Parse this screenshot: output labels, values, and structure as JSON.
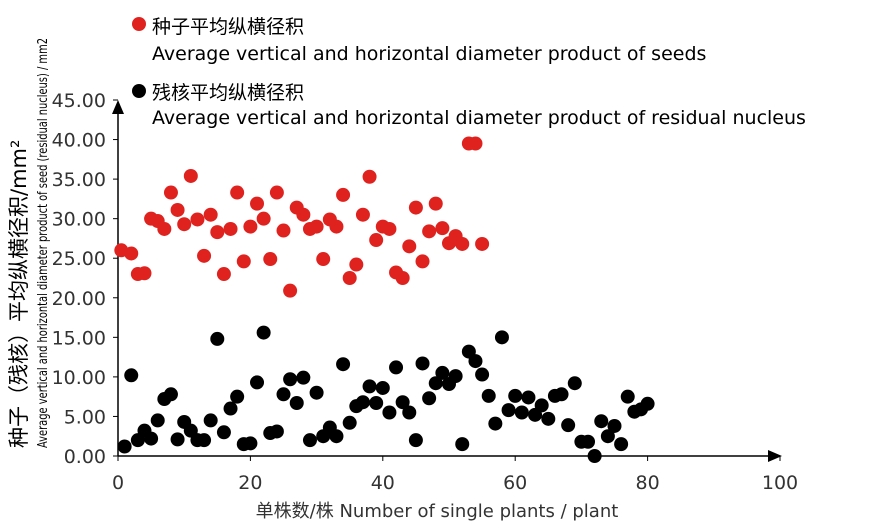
{
  "chart_data": {
    "type": "scatter",
    "title": "",
    "xlabel": "单株数/株 Number of single plants / plant",
    "ylabel_cn": "种子（残核）平均纵横径积/mm²",
    "ylabel_en": "Average vertical and horizontal diameter product of seed (residual nucleus) / mm2",
    "xlim": [
      0,
      100
    ],
    "ylim": [
      0,
      45
    ],
    "xticks": [
      "0",
      "20",
      "40",
      "60",
      "80",
      "100"
    ],
    "yticks": [
      "0.00",
      "5.00",
      "10.00",
      "15.00",
      "20.00",
      "25.00",
      "30.00",
      "35.00",
      "40.00",
      "45.00"
    ],
    "grid": false,
    "legend_position": "top-left",
    "series": [
      {
        "name": "种子平均纵横径积",
        "name_en": "Average vertical and horizontal diameter product of seeds",
        "color": "#e0221f",
        "points": [
          [
            0.5,
            26.0
          ],
          [
            2,
            25.6
          ],
          [
            3,
            23.0
          ],
          [
            4,
            23.1
          ],
          [
            5,
            30.0
          ],
          [
            6,
            29.7
          ],
          [
            7,
            28.7
          ],
          [
            8,
            33.3
          ],
          [
            9,
            31.1
          ],
          [
            10,
            29.3
          ],
          [
            11,
            35.4
          ],
          [
            12,
            29.9
          ],
          [
            13,
            25.3
          ],
          [
            14,
            30.5
          ],
          [
            15,
            28.3
          ],
          [
            16,
            23.0
          ],
          [
            17,
            28.7
          ],
          [
            18,
            33.3
          ],
          [
            19,
            24.6
          ],
          [
            20,
            29.0
          ],
          [
            21,
            31.9
          ],
          [
            22,
            30.0
          ],
          [
            23,
            24.9
          ],
          [
            24,
            33.3
          ],
          [
            25,
            28.5
          ],
          [
            26,
            20.9
          ],
          [
            27,
            31.4
          ],
          [
            28,
            30.5
          ],
          [
            29,
            28.7
          ],
          [
            30,
            29.0
          ],
          [
            31,
            24.9
          ],
          [
            32,
            29.9
          ],
          [
            33,
            29.0
          ],
          [
            34,
            33.0
          ],
          [
            35,
            22.5
          ],
          [
            36,
            24.2
          ],
          [
            37,
            30.5
          ],
          [
            38,
            35.3
          ],
          [
            39,
            27.3
          ],
          [
            40,
            29.0
          ],
          [
            41,
            28.7
          ],
          [
            42,
            23.2
          ],
          [
            43,
            22.5
          ],
          [
            44,
            26.5
          ],
          [
            45,
            31.4
          ],
          [
            46,
            24.6
          ],
          [
            47,
            28.4
          ],
          [
            48,
            31.9
          ],
          [
            49,
            28.8
          ],
          [
            50,
            26.9
          ],
          [
            51,
            27.8
          ],
          [
            52,
            26.8
          ],
          [
            53,
            39.5
          ],
          [
            54,
            39.5
          ],
          [
            55,
            26.8
          ]
        ]
      },
      {
        "name": "残核平均纵横径积",
        "name_en": "Average vertical and horizontal diameter product of residual nucleus",
        "color": "#000000",
        "points": [
          [
            1,
            1.2
          ],
          [
            2,
            10.2
          ],
          [
            3,
            2.0
          ],
          [
            4,
            3.2
          ],
          [
            5,
            2.2
          ],
          [
            6,
            4.5
          ],
          [
            7,
            7.2
          ],
          [
            8,
            7.8
          ],
          [
            9,
            2.1
          ],
          [
            10,
            4.3
          ],
          [
            11,
            3.2
          ],
          [
            12,
            2.0
          ],
          [
            13,
            2.0
          ],
          [
            14,
            4.5
          ],
          [
            15,
            14.8
          ],
          [
            16,
            3.0
          ],
          [
            17,
            6.0
          ],
          [
            18,
            7.5
          ],
          [
            19,
            1.5
          ],
          [
            20,
            1.6
          ],
          [
            21,
            9.3
          ],
          [
            22,
            15.6
          ],
          [
            23,
            2.9
          ],
          [
            24,
            3.1
          ],
          [
            25,
            7.8
          ],
          [
            26,
            9.7
          ],
          [
            27,
            6.7
          ],
          [
            28,
            9.9
          ],
          [
            29,
            2.0
          ],
          [
            30,
            8.0
          ],
          [
            31,
            2.5
          ],
          [
            32,
            3.6
          ],
          [
            33,
            2.5
          ],
          [
            34,
            11.6
          ],
          [
            35,
            4.2
          ],
          [
            36,
            6.3
          ],
          [
            37,
            6.8
          ],
          [
            38,
            8.8
          ],
          [
            39,
            6.7
          ],
          [
            40,
            8.6
          ],
          [
            41,
            5.5
          ],
          [
            42,
            11.2
          ],
          [
            43,
            6.8
          ],
          [
            44,
            5.5
          ],
          [
            45,
            2.0
          ],
          [
            46,
            11.7
          ],
          [
            47,
            7.3
          ],
          [
            48,
            9.2
          ],
          [
            49,
            10.5
          ],
          [
            50,
            9.1
          ],
          [
            51,
            10.1
          ],
          [
            52,
            1.5
          ],
          [
            53,
            13.2
          ],
          [
            54,
            12.0
          ],
          [
            55,
            10.3
          ],
          [
            56,
            7.6
          ],
          [
            57,
            4.1
          ],
          [
            58,
            15.0
          ],
          [
            59,
            5.8
          ],
          [
            60,
            7.6
          ],
          [
            61,
            5.5
          ],
          [
            62,
            7.4
          ],
          [
            63,
            5.2
          ],
          [
            64,
            6.4
          ],
          [
            65,
            4.7
          ],
          [
            66,
            7.6
          ],
          [
            67,
            7.8
          ],
          [
            68,
            3.9
          ],
          [
            69,
            9.2
          ],
          [
            70,
            1.8
          ],
          [
            71,
            1.8
          ],
          [
            72,
            0.0
          ],
          [
            73,
            4.4
          ],
          [
            74,
            2.5
          ],
          [
            75,
            3.8
          ],
          [
            76,
            1.5
          ],
          [
            77,
            7.5
          ],
          [
            78,
            5.6
          ],
          [
            79,
            5.9
          ],
          [
            80,
            6.6
          ]
        ]
      }
    ]
  }
}
